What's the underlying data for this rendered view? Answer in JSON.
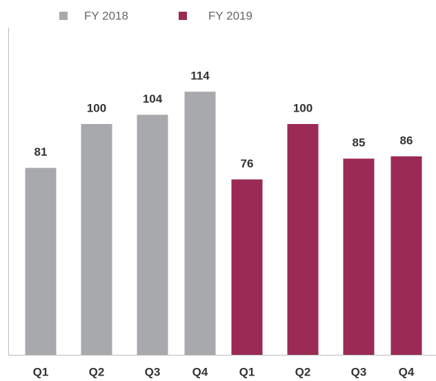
{
  "chart_data": {
    "type": "bar",
    "categories": [
      "Q1",
      "Q2",
      "Q3",
      "Q4",
      "Q1",
      "Q2",
      "Q3",
      "Q4"
    ],
    "series": [
      {
        "name": "FY 2018",
        "color": "#a7a9ac",
        "values": [
          81,
          100,
          104,
          114,
          null,
          null,
          null,
          null
        ]
      },
      {
        "name": "FY 2019",
        "color": "#9b2a55",
        "values": [
          null,
          null,
          null,
          null,
          76,
          100,
          85,
          86
        ]
      }
    ],
    "ylim": [
      0,
      140
    ],
    "legend": "top"
  }
}
